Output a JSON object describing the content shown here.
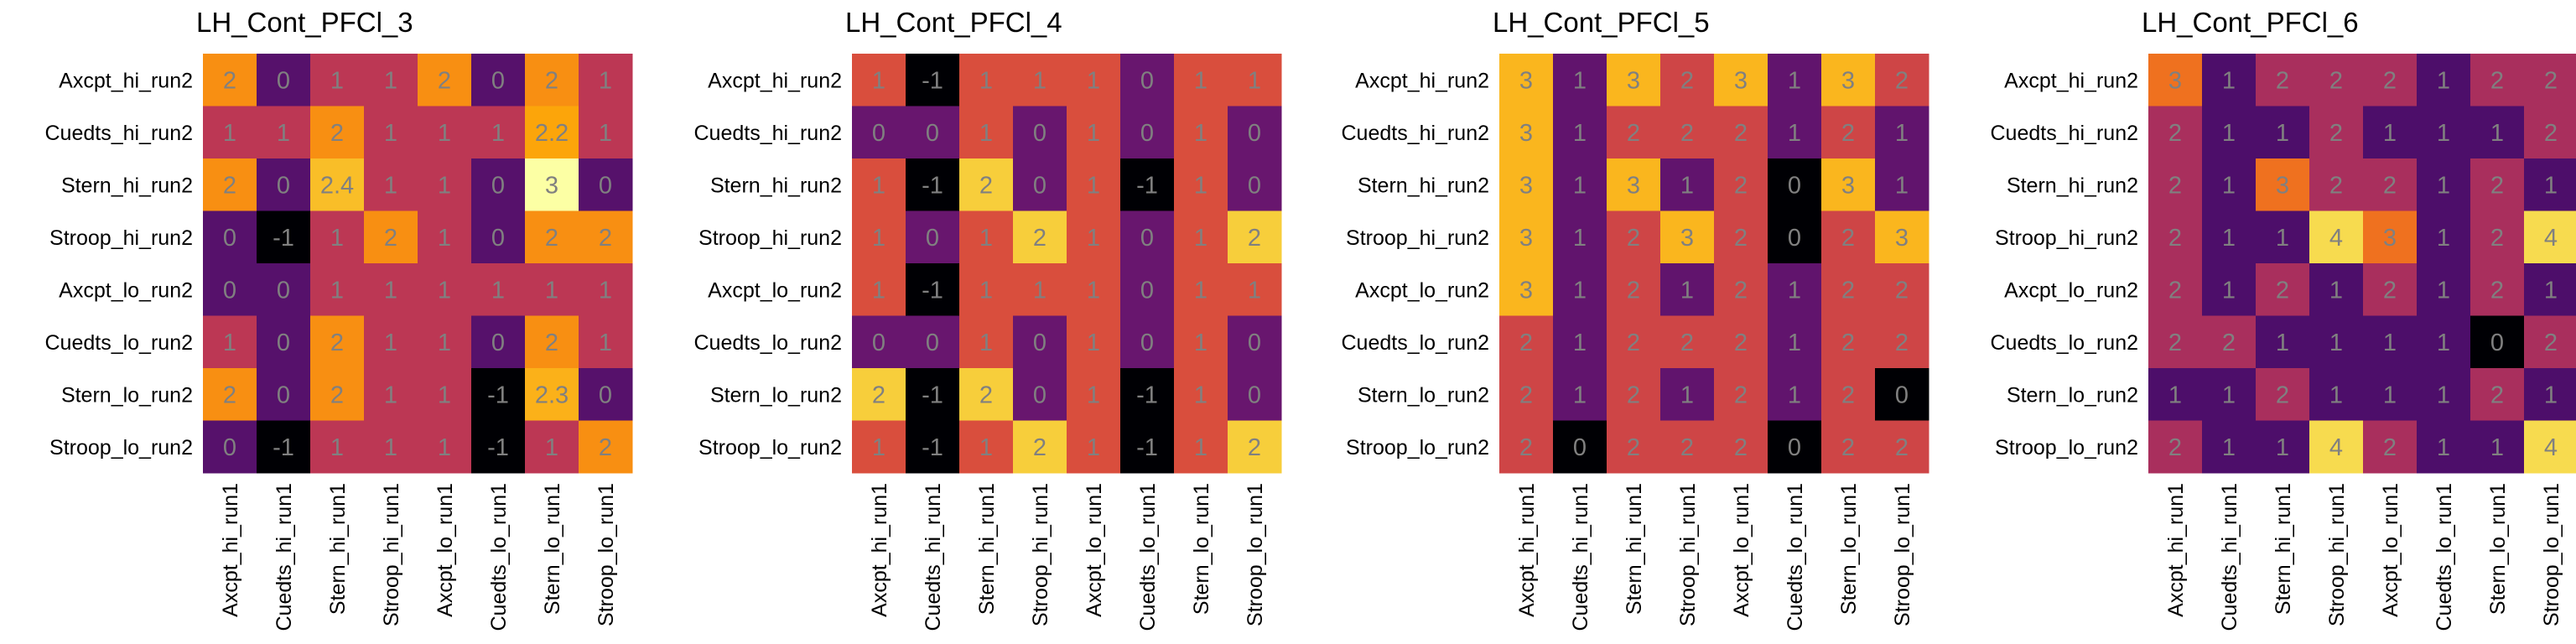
{
  "chart_data": [
    {
      "type": "heatmap",
      "title": "LH_Cont_PFCl_3",
      "x_labels": [
        "Axcpt_hi_run1",
        "Cuedts_hi_run1",
        "Stern_hi_run1",
        "Stroop_hi_run1",
        "Axcpt_lo_run1",
        "Cuedts_lo_run1",
        "Stern_lo_run1",
        "Stroop_lo_run1"
      ],
      "y_labels": [
        "Axcpt_hi_run2",
        "Cuedts_hi_run2",
        "Stern_hi_run2",
        "Stroop_hi_run2",
        "Axcpt_lo_run2",
        "Cuedts_lo_run2",
        "Stern_lo_run2",
        "Stroop_lo_run2"
      ],
      "values": [
        [
          2.0,
          0.0,
          1.0,
          1.0,
          2.0,
          0.0,
          2.0,
          1.0
        ],
        [
          1.0,
          1.0,
          2.0,
          1.0,
          1.0,
          1.0,
          2.2,
          1.0
        ],
        [
          2.0,
          0.0,
          2.4,
          1.0,
          1.0,
          0.0,
          3.0,
          0.0
        ],
        [
          0.0,
          -1.0,
          1.0,
          2.0,
          1.0,
          0.0,
          2.0,
          2.0
        ],
        [
          0.0,
          0.0,
          1.0,
          1.0,
          1.0,
          1.0,
          1.0,
          1.0
        ],
        [
          1.0,
          0.0,
          2.0,
          1.0,
          1.0,
          0.0,
          2.0,
          1.0
        ],
        [
          2.0,
          0.0,
          2.0,
          1.0,
          1.0,
          -1.0,
          2.3,
          0.0
        ],
        [
          0.0,
          -1.0,
          1.0,
          1.0,
          1.0,
          -1.0,
          1.0,
          2.0
        ]
      ],
      "color_range": [
        -1,
        3
      ],
      "colormap": "inferno"
    },
    {
      "type": "heatmap",
      "title": "LH_Cont_PFCl_4",
      "x_labels": [
        "Axcpt_hi_run1",
        "Cuedts_hi_run1",
        "Stern_hi_run1",
        "Stroop_hi_run1",
        "Axcpt_lo_run1",
        "Cuedts_lo_run1",
        "Stern_lo_run1",
        "Stroop_lo_run1"
      ],
      "y_labels": [
        "Axcpt_hi_run2",
        "Cuedts_hi_run2",
        "Stern_hi_run2",
        "Stroop_hi_run2",
        "Axcpt_lo_run2",
        "Cuedts_lo_run2",
        "Stern_lo_run2",
        "Stroop_lo_run2"
      ],
      "values": [
        [
          1.0,
          -1.0,
          1.0,
          1.0,
          1.0,
          0.0,
          1.0,
          1.0
        ],
        [
          0.0,
          0.0,
          1.0,
          0.0,
          1.0,
          0.0,
          1.0,
          0.0
        ],
        [
          1.0,
          -1.0,
          2.0,
          0.0,
          1.0,
          -1.0,
          1.0,
          0.0
        ],
        [
          1.0,
          0.0,
          1.0,
          2.0,
          1.0,
          0.0,
          1.0,
          2.0
        ],
        [
          1.0,
          -1.0,
          1.0,
          1.0,
          1.0,
          0.0,
          1.0,
          1.0
        ],
        [
          0.0,
          0.0,
          1.0,
          0.0,
          1.0,
          0.0,
          1.0,
          0.0
        ],
        [
          2.0,
          -1.0,
          2.0,
          0.0,
          1.0,
          -1.0,
          1.0,
          0.0
        ],
        [
          1.0,
          -1.0,
          1.0,
          2.0,
          1.0,
          -1.0,
          1.0,
          2.0
        ]
      ],
      "color_range": [
        -1,
        2.4
      ],
      "colormap": "inferno"
    },
    {
      "type": "heatmap",
      "title": "LH_Cont_PFCl_5",
      "x_labels": [
        "Axcpt_hi_run1",
        "Cuedts_hi_run1",
        "Stern_hi_run1",
        "Stroop_hi_run1",
        "Axcpt_lo_run1",
        "Cuedts_lo_run1",
        "Stern_lo_run1",
        "Stroop_lo_run1"
      ],
      "y_labels": [
        "Axcpt_hi_run2",
        "Cuedts_hi_run2",
        "Stern_hi_run2",
        "Stroop_hi_run2",
        "Axcpt_lo_run2",
        "Cuedts_lo_run2",
        "Stern_lo_run2",
        "Stroop_lo_run2"
      ],
      "values": [
        [
          3.0,
          1.0,
          3.0,
          2.0,
          3.0,
          1.0,
          3.0,
          2.0
        ],
        [
          3.0,
          1.0,
          2.0,
          2.0,
          2.0,
          1.0,
          2.0,
          1.0
        ],
        [
          3.0,
          1.0,
          3.0,
          1.0,
          2.0,
          0.0,
          3.0,
          1.0
        ],
        [
          3.0,
          1.0,
          2.0,
          3.0,
          2.0,
          0.0,
          2.0,
          3.0
        ],
        [
          3.0,
          1.0,
          2.0,
          1.0,
          2.0,
          1.0,
          2.0,
          2.0
        ],
        [
          2.0,
          1.0,
          2.0,
          2.0,
          2.0,
          1.0,
          2.0,
          2.0
        ],
        [
          2.0,
          1.0,
          2.0,
          1.0,
          2.0,
          1.0,
          2.0,
          0.0
        ],
        [
          2.0,
          0.0,
          2.0,
          2.0,
          2.0,
          0.0,
          2.0,
          2.0
        ]
      ],
      "color_range": [
        0,
        3.6
      ],
      "colormap": "inferno"
    },
    {
      "type": "heatmap",
      "title": "LH_Cont_PFCl_6",
      "x_labels": [
        "Axcpt_hi_run1",
        "Cuedts_hi_run1",
        "Stern_hi_run1",
        "Stroop_hi_run1",
        "Axcpt_lo_run1",
        "Cuedts_lo_run1",
        "Stern_lo_run1",
        "Stroop_lo_run1"
      ],
      "y_labels": [
        "Axcpt_hi_run2",
        "Cuedts_hi_run2",
        "Stern_hi_run2",
        "Stroop_hi_run2",
        "Axcpt_lo_run2",
        "Cuedts_lo_run2",
        "Stern_lo_run2",
        "Stroop_lo_run2"
      ],
      "values": [
        [
          3.0,
          1.0,
          2.0,
          2.0,
          2.0,
          1.0,
          2.0,
          2.0
        ],
        [
          2.0,
          1.0,
          1.0,
          2.0,
          1.0,
          1.0,
          1.0,
          2.0
        ],
        [
          2.0,
          1.0,
          3.0,
          2.0,
          2.0,
          1.0,
          2.0,
          1.0
        ],
        [
          2.0,
          1.0,
          1.0,
          4.0,
          3.0,
          1.0,
          2.0,
          4.0
        ],
        [
          2.0,
          1.0,
          2.0,
          1.0,
          2.0,
          1.0,
          2.0,
          1.0
        ],
        [
          2.0,
          2.0,
          1.0,
          1.0,
          1.0,
          1.0,
          0.0,
          2.0
        ],
        [
          1.0,
          1.0,
          2.0,
          1.0,
          1.0,
          1.0,
          2.0,
          1.0
        ],
        [
          2.0,
          1.0,
          1.0,
          4.0,
          2.0,
          1.0,
          1.0,
          4.0
        ]
      ],
      "color_range": [
        0,
        4.4
      ],
      "colormap": "inferno"
    }
  ]
}
